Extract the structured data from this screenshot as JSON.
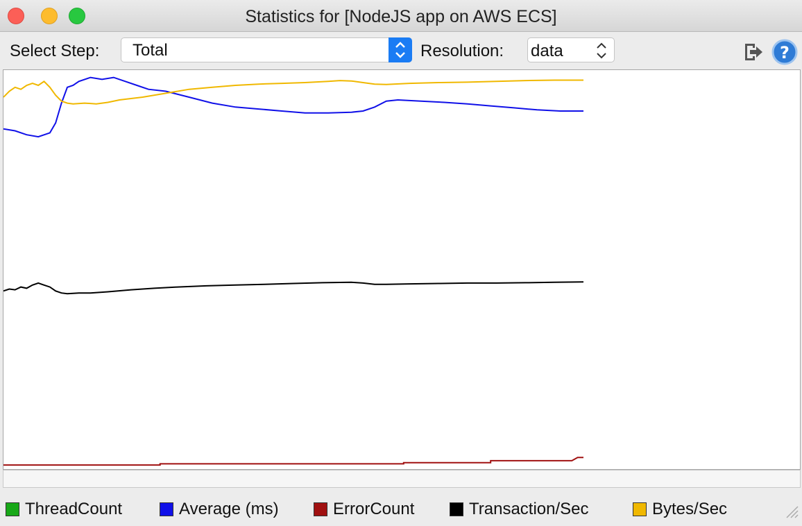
{
  "window": {
    "title": "Statistics for [NodeJS app on AWS ECS]"
  },
  "toolbar": {
    "step_label": "Select Step:",
    "step_value": "Total",
    "resolution_label": "Resolution:",
    "resolution_value": "data",
    "icons": [
      "export-icon",
      "help-icon"
    ]
  },
  "legend": [
    {
      "label": "ThreadCount",
      "color": "#18a818"
    },
    {
      "label": "Average (ms)",
      "color": "#1010e8"
    },
    {
      "label": "ErrorCount",
      "color": "#a01010"
    },
    {
      "label": "Transaction/Sec",
      "color": "#000000"
    },
    {
      "label": "Bytes/Sec",
      "color": "#f0b800"
    }
  ],
  "chart_data": {
    "type": "line",
    "y_units": "normalized 0-1 (no axes printed)",
    "x_range": [
      0,
      100
    ],
    "series": [
      {
        "name": "Average (ms)",
        "color": "#1010e8",
        "points": [
          [
            0,
            0.855
          ],
          [
            2,
            0.85
          ],
          [
            4,
            0.84
          ],
          [
            6,
            0.835
          ],
          [
            8,
            0.845
          ],
          [
            9,
            0.87
          ],
          [
            10,
            0.92
          ],
          [
            11,
            0.96
          ],
          [
            12,
            0.965
          ],
          [
            13,
            0.975
          ],
          [
            15,
            0.985
          ],
          [
            17,
            0.98
          ],
          [
            19,
            0.985
          ],
          [
            21,
            0.975
          ],
          [
            23,
            0.965
          ],
          [
            25,
            0.955
          ],
          [
            28,
            0.95
          ],
          [
            32,
            0.935
          ],
          [
            36,
            0.92
          ],
          [
            40,
            0.91
          ],
          [
            44,
            0.905
          ],
          [
            48,
            0.9
          ],
          [
            52,
            0.895
          ],
          [
            56,
            0.895
          ],
          [
            60,
            0.897
          ],
          [
            62,
            0.9
          ],
          [
            64,
            0.91
          ],
          [
            66,
            0.925
          ],
          [
            68,
            0.928
          ],
          [
            72,
            0.925
          ],
          [
            76,
            0.922
          ],
          [
            80,
            0.918
          ],
          [
            84,
            0.913
          ],
          [
            88,
            0.908
          ],
          [
            92,
            0.903
          ],
          [
            96,
            0.9
          ],
          [
            100,
            0.9
          ]
        ]
      },
      {
        "name": "Bytes/Sec",
        "color": "#f0b800",
        "points": [
          [
            0,
            0.935
          ],
          [
            1,
            0.95
          ],
          [
            2,
            0.96
          ],
          [
            3,
            0.955
          ],
          [
            4,
            0.965
          ],
          [
            5,
            0.97
          ],
          [
            6,
            0.965
          ],
          [
            7,
            0.975
          ],
          [
            8,
            0.96
          ],
          [
            9,
            0.94
          ],
          [
            10,
            0.925
          ],
          [
            11,
            0.92
          ],
          [
            12,
            0.918
          ],
          [
            14,
            0.92
          ],
          [
            16,
            0.918
          ],
          [
            18,
            0.922
          ],
          [
            20,
            0.928
          ],
          [
            24,
            0.935
          ],
          [
            28,
            0.945
          ],
          [
            32,
            0.955
          ],
          [
            36,
            0.96
          ],
          [
            40,
            0.965
          ],
          [
            44,
            0.968
          ],
          [
            48,
            0.97
          ],
          [
            52,
            0.972
          ],
          [
            56,
            0.975
          ],
          [
            58,
            0.977
          ],
          [
            60,
            0.976
          ],
          [
            62,
            0.972
          ],
          [
            64,
            0.968
          ],
          [
            66,
            0.967
          ],
          [
            70,
            0.97
          ],
          [
            75,
            0.972
          ],
          [
            80,
            0.973
          ],
          [
            85,
            0.975
          ],
          [
            90,
            0.977
          ],
          [
            95,
            0.978
          ],
          [
            100,
            0.978
          ]
        ]
      },
      {
        "name": "Transaction/Sec",
        "color": "#000000",
        "points": [
          [
            0,
            0.445
          ],
          [
            1,
            0.45
          ],
          [
            2,
            0.448
          ],
          [
            3,
            0.455
          ],
          [
            4,
            0.452
          ],
          [
            5,
            0.46
          ],
          [
            6,
            0.465
          ],
          [
            7,
            0.46
          ],
          [
            8,
            0.455
          ],
          [
            9,
            0.445
          ],
          [
            10,
            0.44
          ],
          [
            11,
            0.438
          ],
          [
            13,
            0.44
          ],
          [
            15,
            0.44
          ],
          [
            18,
            0.443
          ],
          [
            22,
            0.448
          ],
          [
            26,
            0.452
          ],
          [
            30,
            0.455
          ],
          [
            35,
            0.458
          ],
          [
            40,
            0.46
          ],
          [
            45,
            0.462
          ],
          [
            50,
            0.464
          ],
          [
            55,
            0.466
          ],
          [
            60,
            0.467
          ],
          [
            62,
            0.465
          ],
          [
            64,
            0.462
          ],
          [
            66,
            0.462
          ],
          [
            70,
            0.463
          ],
          [
            75,
            0.464
          ],
          [
            80,
            0.465
          ],
          [
            85,
            0.465
          ],
          [
            90,
            0.466
          ],
          [
            95,
            0.467
          ],
          [
            100,
            0.468
          ]
        ]
      },
      {
        "name": "ErrorCount",
        "color": "#a01010",
        "points": [
          [
            0,
            0.005
          ],
          [
            27,
            0.005
          ],
          [
            27,
            0.008
          ],
          [
            50,
            0.008
          ],
          [
            69,
            0.008
          ],
          [
            69,
            0.011
          ],
          [
            84,
            0.011
          ],
          [
            84,
            0.016
          ],
          [
            98,
            0.016
          ],
          [
            99,
            0.024
          ],
          [
            100,
            0.024
          ]
        ]
      },
      {
        "name": "ThreadCount",
        "color": "#18a818",
        "points": []
      }
    ]
  }
}
